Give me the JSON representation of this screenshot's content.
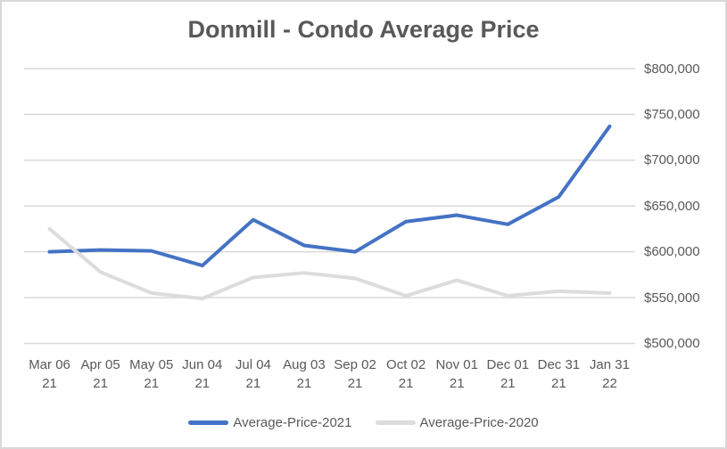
{
  "colors": {
    "accent_blue": "#4472C4",
    "series_gray": "#DCDCDC",
    "gridline": "#D9D9D9",
    "text": "#595959",
    "frame_border": "#D9D9D9"
  },
  "chart_data": {
    "type": "line",
    "title": "Donmill - Condo Average Price",
    "categories": [
      "Mar 06 21",
      "Apr 05 21",
      "May 05 21",
      "Jun 04 21",
      "Jul 04 21",
      "Aug 03 21",
      "Sep 02 21",
      "Oct 02 21",
      "Nov 01 21",
      "Dec 01 21",
      "Dec 31 21",
      "Jan 31 22"
    ],
    "series": [
      {
        "name": "Average-Price-2021",
        "color": "#4472C4",
        "values": [
          600000,
          602000,
          601000,
          585000,
          635000,
          607000,
          600000,
          633000,
          640000,
          630000,
          660000,
          737000
        ]
      },
      {
        "name": "Average-Price-2020",
        "color": "#DCDCDC",
        "values": [
          625000,
          578000,
          555000,
          549000,
          572000,
          577000,
          571000,
          552000,
          569000,
          552000,
          557000,
          555000
        ]
      }
    ],
    "y_axis": {
      "min": 500000,
      "max": 800000,
      "step": 50000,
      "tick_labels": [
        "$500,000",
        "$550,000",
        "$600,000",
        "$650,000",
        "$700,000",
        "$750,000",
        "$800,000"
      ],
      "position": "right"
    },
    "xlabel": "",
    "ylabel": "",
    "grid": true,
    "legend_position": "bottom"
  }
}
